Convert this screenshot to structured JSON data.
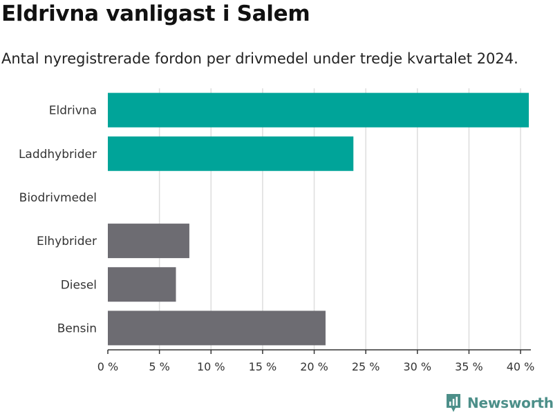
{
  "title": "Eldrivna vanligast i Salem",
  "subtitle": "Antal nyregistrerade fordon per drivmedel under tredje kvartalet 2024.",
  "brand": {
    "name": "Newsworthy",
    "icon": "newsworthy-logo-icon"
  },
  "colors": {
    "highlight": "#00a499",
    "other": "#6d6c72",
    "grid": "#dddddd",
    "axis": "#333333",
    "brand": "#4c8f89"
  },
  "chart_data": {
    "type": "bar",
    "orientation": "horizontal",
    "title": "Eldrivna vanligast i Salem",
    "subtitle": "Antal nyregistrerade fordon per drivmedel under tredje kvartalet 2024.",
    "categories": [
      "Eldrivna",
      "Laddhybrider",
      "Biodrivmedel",
      "Elhybrider",
      "Diesel",
      "Bensin"
    ],
    "values": [
      40.8,
      23.8,
      0,
      7.9,
      6.6,
      21.1
    ],
    "highlighted": [
      true,
      true,
      false,
      false,
      false,
      false
    ],
    "unit": "%",
    "xlim": [
      0,
      41
    ],
    "xticks": [
      0,
      5,
      10,
      15,
      20,
      25,
      30,
      35,
      40
    ],
    "xtick_labels": [
      "0 %",
      "5 %",
      "10 %",
      "15 %",
      "20 %",
      "25 %",
      "30 %",
      "35 %",
      "40 %"
    ],
    "xlabel": "",
    "ylabel": "",
    "grid": true,
    "legend": "none"
  }
}
